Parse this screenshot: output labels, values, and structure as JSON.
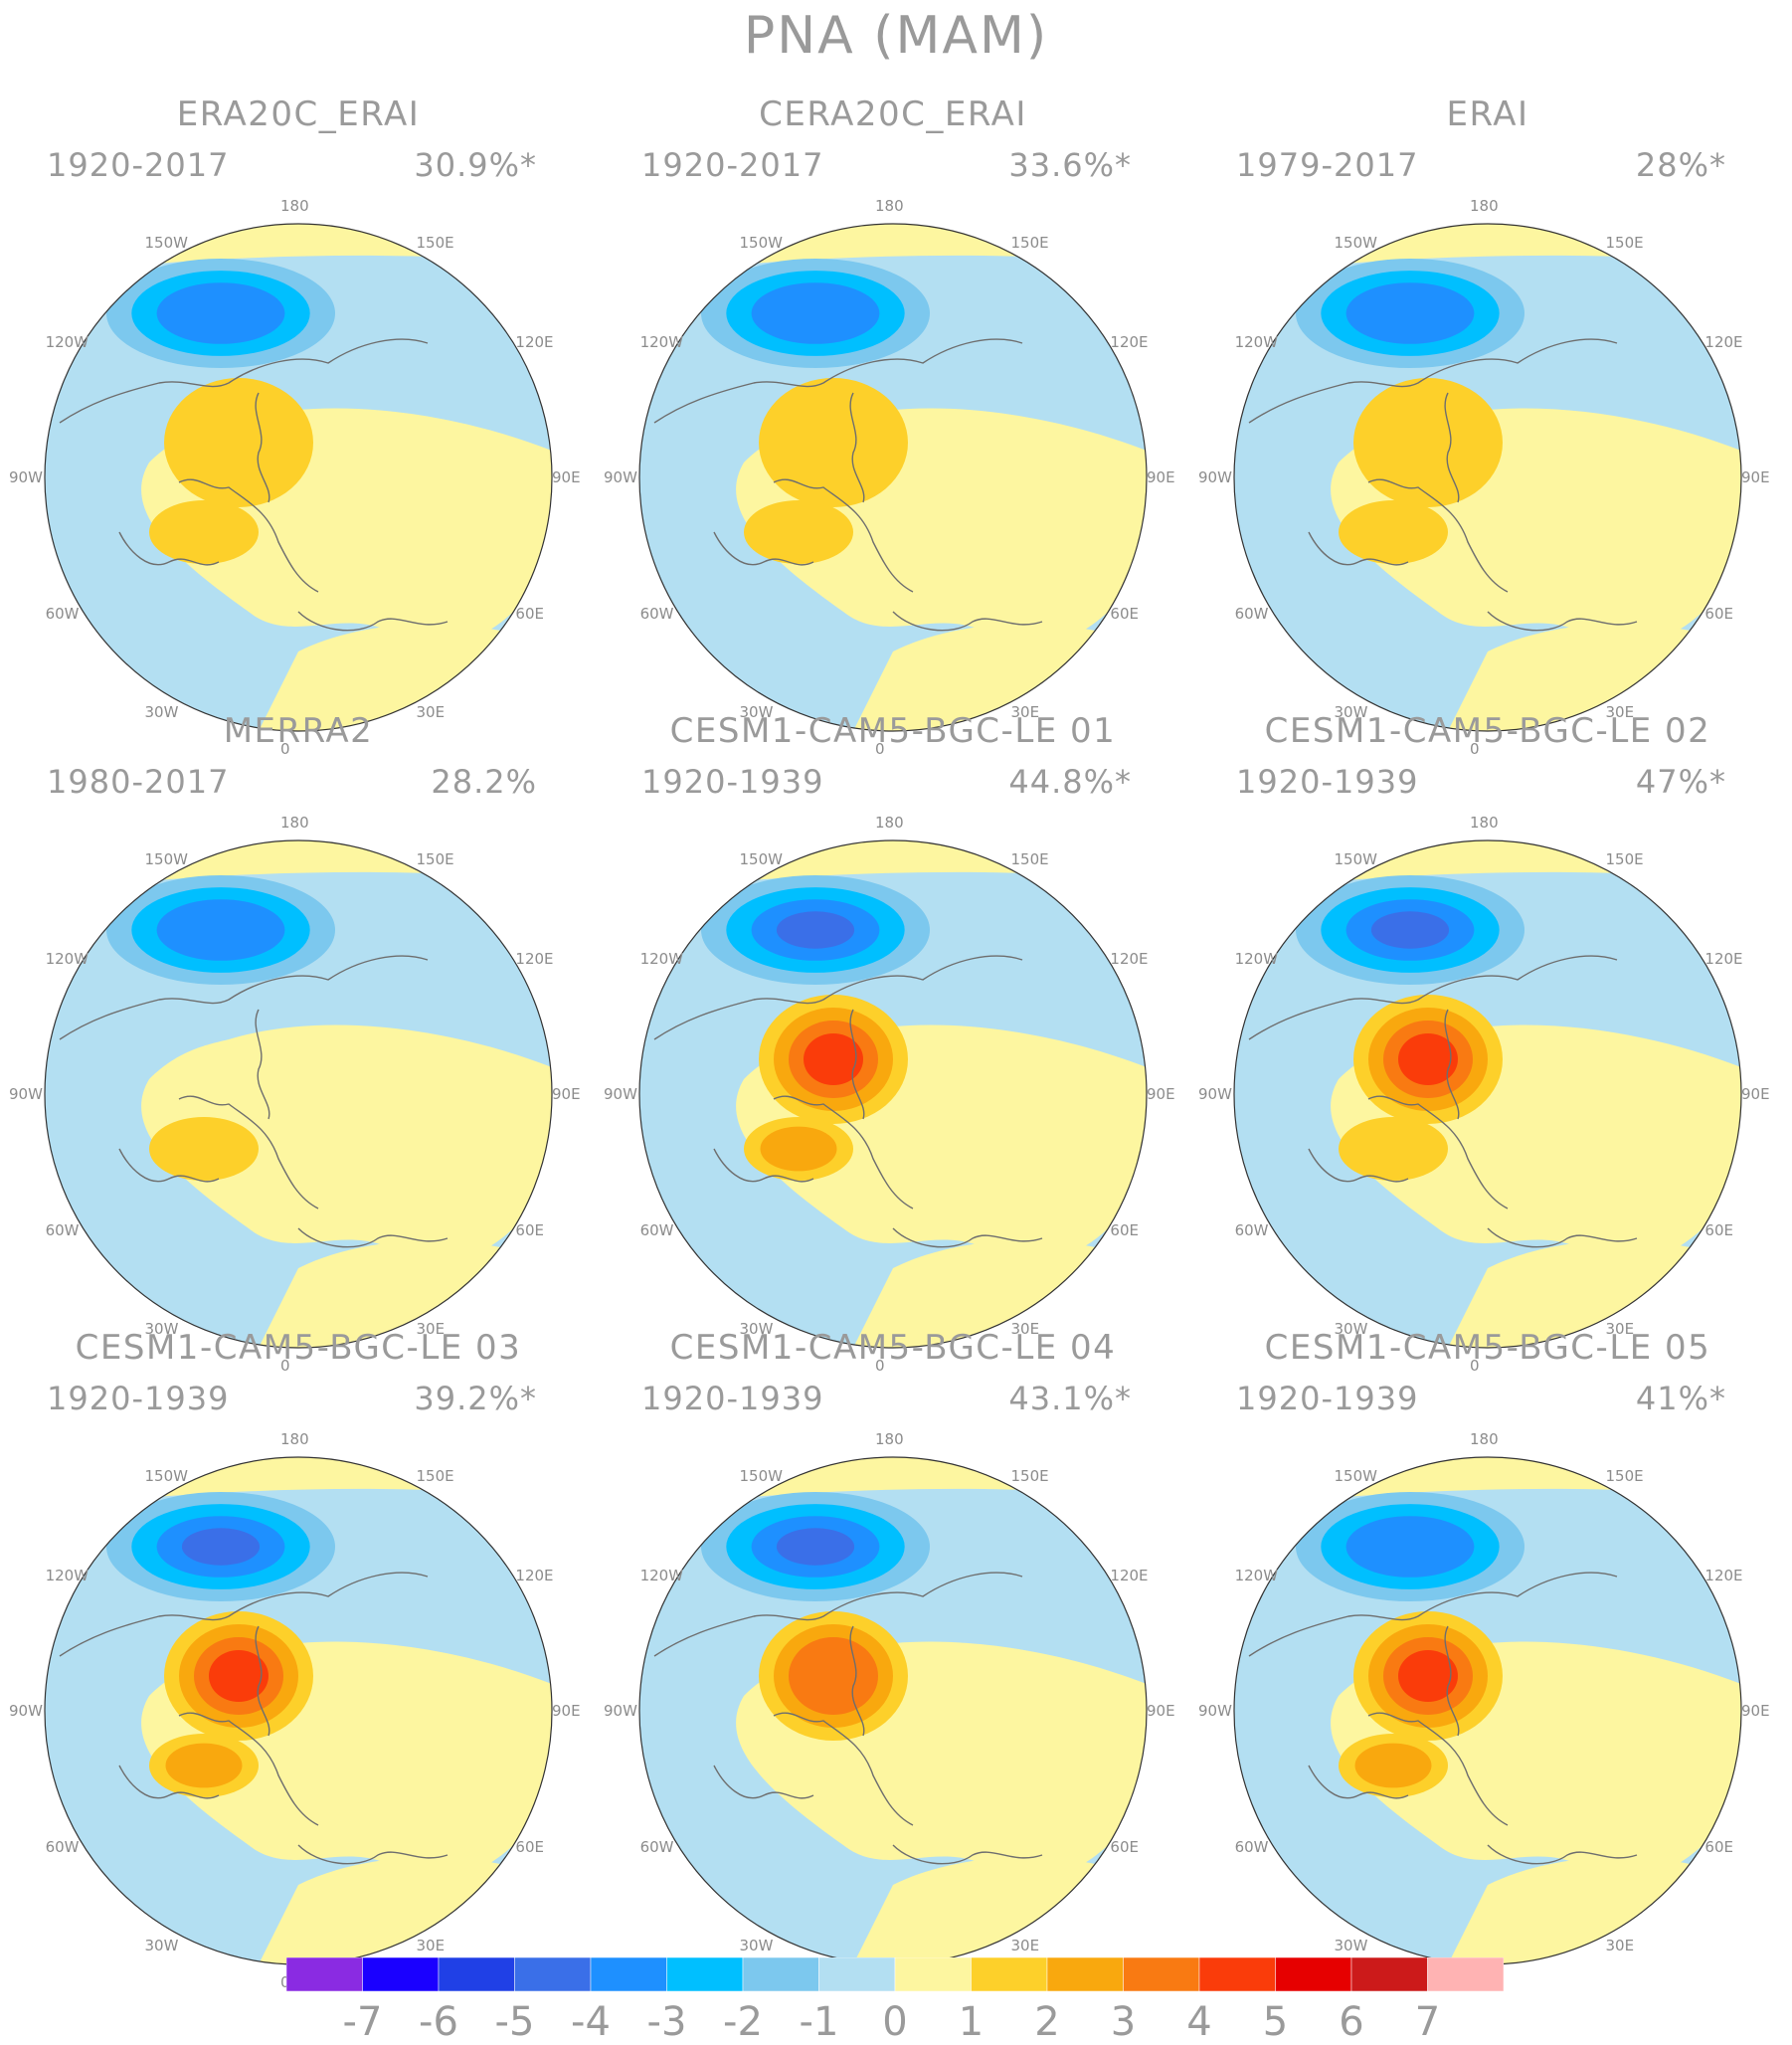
{
  "title": "PNA (MAM)",
  "longitude_labels": [
    "180",
    "150W",
    "150E",
    "120W",
    "120E",
    "90W",
    "90E",
    "60W",
    "60E",
    "30W",
    "30E",
    "0"
  ],
  "panels": [
    {
      "title": "ERA20C_ERAI",
      "period": "1920-2017",
      "variance": "30.9%*",
      "low_peak": -4,
      "high_peak": 2,
      "high_lobe": 2
    },
    {
      "title": "CERA20C_ERAI",
      "period": "1920-2017",
      "variance": "33.6%*",
      "low_peak": -4,
      "high_peak": 2,
      "high_lobe": 2
    },
    {
      "title": "ERAI",
      "period": "1979-2017",
      "variance": "28%*",
      "low_peak": -4,
      "high_peak": 2,
      "high_lobe": 2
    },
    {
      "title": "MERRA2",
      "period": "1980-2017",
      "variance": "28.2%",
      "low_peak": -4,
      "high_peak": 1,
      "high_lobe": 2
    },
    {
      "title": "CESM1-CAM5-BGC-LE 01",
      "period": "1920-1939",
      "variance": "44.8%*",
      "low_peak": -5,
      "high_peak": 5,
      "high_lobe": 3
    },
    {
      "title": "CESM1-CAM5-BGC-LE 02",
      "period": "1920-1939",
      "variance": "47%*",
      "low_peak": -5,
      "high_peak": 5,
      "high_lobe": 2
    },
    {
      "title": "CESM1-CAM5-BGC-LE 03",
      "period": "1920-1939",
      "variance": "39.2%*",
      "low_peak": -5,
      "high_peak": 5,
      "high_lobe": 3
    },
    {
      "title": "CESM1-CAM5-BGC-LE 04",
      "period": "1920-1939",
      "variance": "43.1%*",
      "low_peak": -5,
      "high_peak": 4,
      "high_lobe": 1
    },
    {
      "title": "CESM1-CAM5-BGC-LE 05",
      "period": "1920-1939",
      "variance": "41%*",
      "low_peak": -4,
      "high_peak": 5,
      "high_lobe": 3
    }
  ],
  "colorbar": {
    "labels": [
      "-7",
      "-6",
      "-5",
      "-4",
      "-3",
      "-2",
      "-1",
      "0",
      "1",
      "2",
      "3",
      "4",
      "5",
      "6",
      "7"
    ],
    "colors": [
      "#8a2be2",
      "#1a00ff",
      "#2040e6",
      "#3a6fe8",
      "#1e90ff",
      "#00bfff",
      "#7cc8ee",
      "#b3dff2",
      "#fdf6a0",
      "#fdd02a",
      "#f9a80e",
      "#f97a12",
      "#fa3c0a",
      "#e60000",
      "#cc1a1a",
      "#ffb3b3"
    ]
  }
}
